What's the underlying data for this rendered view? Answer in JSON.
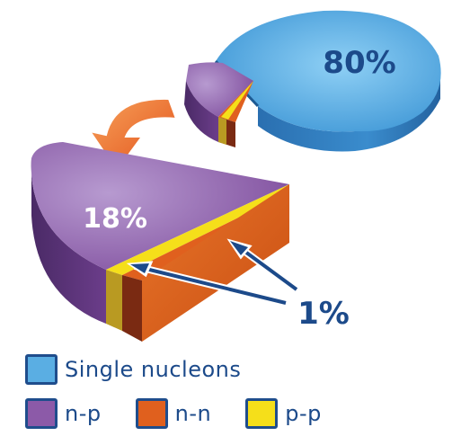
{
  "chart_data": {
    "type": "pie",
    "title": "",
    "slices": [
      {
        "label": "Single nucleons",
        "value": 80,
        "color": "#5aaee3"
      },
      {
        "label": "n-p",
        "value": 18,
        "color": "#8c5aa8"
      },
      {
        "label": "n-n",
        "value": 1,
        "color": "#e0601e"
      },
      {
        "label": "p-p",
        "value": 1,
        "color": "#f5df1a"
      }
    ],
    "value_labels": {
      "single": "80%",
      "np": "18%",
      "small": "1%"
    },
    "legend": [
      "Single nucleons",
      "n-p",
      "n-n",
      "p-p"
    ],
    "legend_position": "bottom-left",
    "annotation_color": "#1c4a8a",
    "arrow_color": "#f06a2a"
  }
}
